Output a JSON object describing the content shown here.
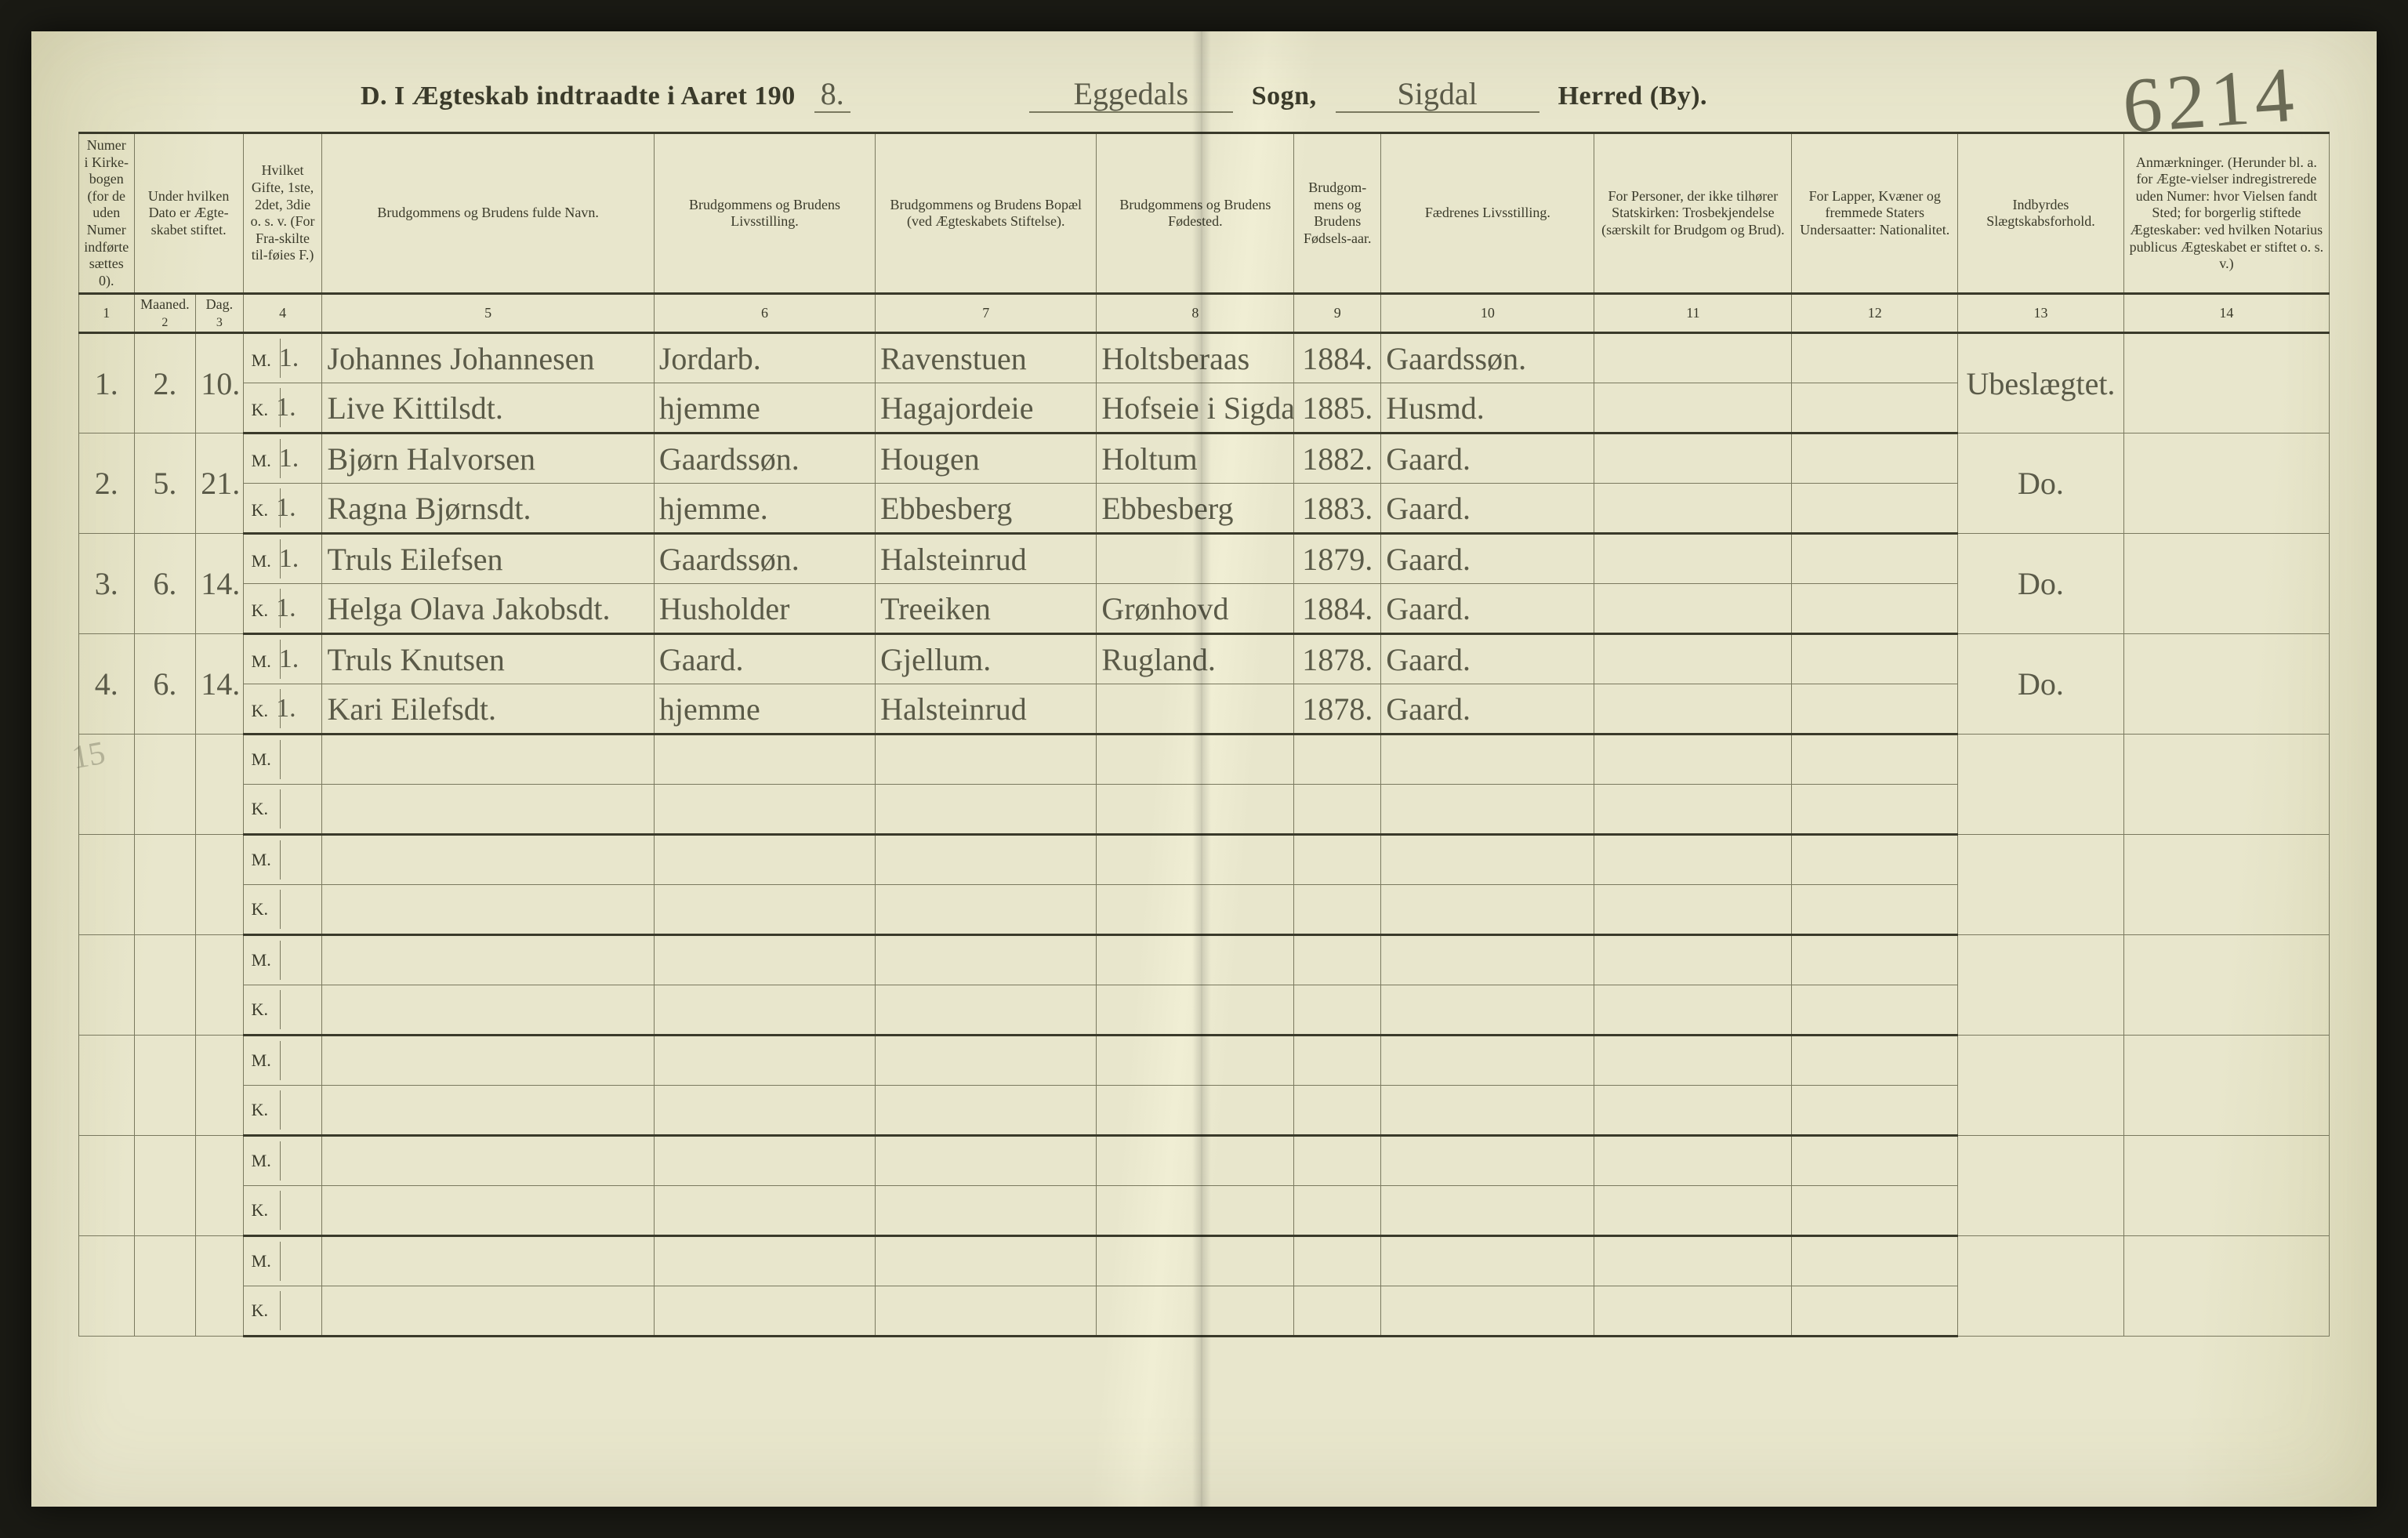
{
  "header": {
    "title_prefix": "D.   I Ægteskab indtraadte i Aaret 190",
    "year_suffix": "8.",
    "sogn_label": "Sogn,",
    "sogn_value": "Eggedals",
    "herred_label": "Herred (By).",
    "herred_value": "Sigdal",
    "page_number": "6214"
  },
  "columns": {
    "c1": "Numer i Kirke-bogen (for de uden Numer indførte sættes 0).",
    "c2_3_top": "Under hvilken Dato er Ægte-skabet stiftet.",
    "c2": "Maaned.",
    "c3": "Dag.",
    "c4": "Hvilket Gifte, 1ste, 2det, 3die o. s. v. (For Fra-skilte til-føies F.)",
    "c5": "Brudgommens og Brudens fulde Navn.",
    "c6": "Brudgommens og Brudens Livsstilling.",
    "c7": "Brudgommens og Brudens Bopæl (ved Ægteskabets Stiftelse).",
    "c8": "Brudgommens og Brudens Fødested.",
    "c9": "Brudgom-mens og Brudens Fødsels-aar.",
    "c10": "Fædrenes Livsstilling.",
    "c11": "For Personer, der ikke tilhører Statskirken: Trosbekjendelse (særskilt for Brudgom og Brud).",
    "c12": "For Lapper, Kvæner og fremmede Staters Undersaatter: Nationalitet.",
    "c13": "Indbyrdes Slægtskabsforhold.",
    "c14": "Anmærkninger. (Herunder bl. a. for Ægte-vielser indregistrerede uden Numer: hvor Vielsen fandt Sted; for borgerlig stiftede Ægteskaber: ved hvilken Notarius publicus Ægteskabet er stiftet o. s. v.)"
  },
  "col_nums": [
    "1",
    "2",
    "3",
    "4",
    "5",
    "6",
    "7",
    "8",
    "9",
    "10",
    "11",
    "12",
    "13",
    "14"
  ],
  "mk": {
    "m": "M.",
    "k": "K."
  },
  "entries": [
    {
      "num": "1.",
      "maaned": "2.",
      "dag": "10.",
      "m": {
        "gifte": "1.",
        "navn": "Johannes Johannesen",
        "stilling": "Jordarb.",
        "bopael": "Ravenstuen",
        "fodested": "Holtsberaas",
        "aar": "1884.",
        "faedre": "Gaardssøn."
      },
      "k": {
        "gifte": "1.",
        "navn": "Live Kittilsdt.",
        "stilling": "hjemme",
        "bopael": "Hagajordeie",
        "fodested": "Hofseie i Sigdal",
        "aar": "1885.",
        "faedre": "Husmd."
      },
      "slaegt": "Ubeslægtet.",
      "anm": ""
    },
    {
      "num": "2.",
      "maaned": "5.",
      "dag": "21.",
      "m": {
        "gifte": "1.",
        "navn": "Bjørn Halvorsen",
        "stilling": "Gaardssøn.",
        "bopael": "Hougen",
        "fodested": "Holtum",
        "aar": "1882.",
        "faedre": "Gaard."
      },
      "k": {
        "gifte": "1.",
        "navn": "Ragna Bjørnsdt.",
        "stilling": "hjemme.",
        "bopael": "Ebbesberg",
        "fodested": "Ebbesberg",
        "aar": "1883.",
        "faedre": "Gaard."
      },
      "slaegt": "Do.",
      "anm": ""
    },
    {
      "num": "3.",
      "maaned": "6.",
      "dag": "14.",
      "m": {
        "gifte": "1.",
        "navn": "Truls Eilefsen",
        "stilling": "Gaardssøn.",
        "bopael": "Halsteinrud",
        "fodested": "",
        "aar": "1879.",
        "faedre": "Gaard."
      },
      "k": {
        "gifte": "1.",
        "navn": "Helga Olava Jakobsdt.",
        "stilling": "Husholder",
        "bopael": "Treeiken",
        "fodested": "Grønhovd",
        "aar": "1884.",
        "faedre": "Gaard."
      },
      "slaegt": "Do.",
      "anm": ""
    },
    {
      "num": "4.",
      "maaned": "6.",
      "dag": "14.",
      "m": {
        "gifte": "1.",
        "navn": "Truls Knutsen",
        "stilling": "Gaard.",
        "bopael": "Gjellum.",
        "fodested": "Rugland.",
        "aar": "1878.",
        "faedre": "Gaard."
      },
      "k": {
        "gifte": "1.",
        "navn": "Kari Eilefsdt.",
        "stilling": "hjemme",
        "bopael": "Halsteinrud",
        "fodested": "",
        "aar": "1878.",
        "faedre": "Gaard."
      },
      "slaegt": "Do.",
      "anm": ""
    }
  ],
  "margin_mark": "15",
  "empty_pairs": 6
}
